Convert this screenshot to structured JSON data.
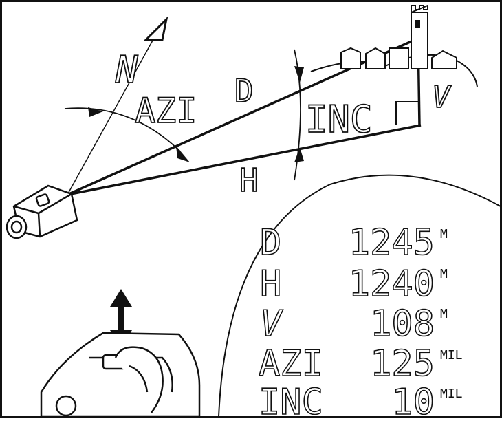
{
  "diagram": {
    "north_label": "N",
    "angle_labels": {
      "azimuth": "AZI",
      "distance": "D",
      "inclination": "INC",
      "horizontal": "H",
      "vertical": "V"
    },
    "readout": {
      "rows": [
        {
          "label": "D",
          "value": "1245",
          "unit": "M"
        },
        {
          "label": "H",
          "value": "1240",
          "unit": "M"
        },
        {
          "label": "V",
          "value": "108",
          "unit": "M"
        },
        {
          "label": "AZI",
          "value": "125",
          "unit": "MIL"
        },
        {
          "label": "INC",
          "value": "10",
          "unit": "MIL"
        }
      ]
    }
  }
}
